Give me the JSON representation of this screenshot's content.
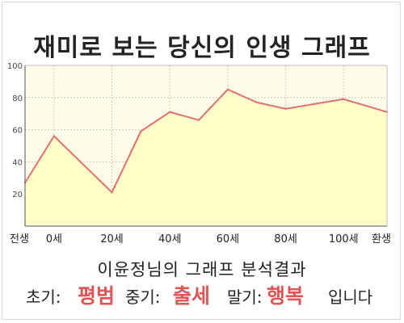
{
  "title": "재미로 보는 당신의 인생 그래프",
  "chart_data": {
    "type": "area",
    "x_categories": [
      "전생",
      "0세",
      "20세",
      "40세",
      "60세",
      "80세",
      "100세",
      "환생"
    ],
    "x": [
      -10,
      0,
      20,
      30,
      40,
      50,
      60,
      70,
      80,
      90,
      100,
      115
    ],
    "values": [
      27,
      56,
      21,
      59,
      71,
      66,
      85,
      77,
      73,
      76,
      79,
      71
    ],
    "ylim": [
      0,
      100
    ],
    "yticks": [
      20,
      40,
      60,
      80,
      100
    ],
    "grid": true,
    "colors": {
      "line": "#e07070",
      "fill": "#ffffc8",
      "plot_bg": "#fdfde8",
      "grid": "#c9c9c9"
    }
  },
  "result_title": "이윤정님의 그래프 분석결과",
  "summary": {
    "early_label": "초기:",
    "early_value": "평범",
    "middle_label": "중기:",
    "middle_value": "출세",
    "late_label": "말기:",
    "late_value": "행복",
    "ending": "입니다"
  }
}
